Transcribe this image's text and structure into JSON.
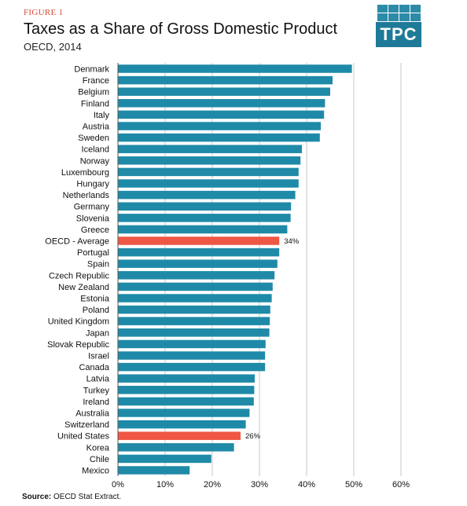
{
  "figure_label": "FIGURE 1",
  "logo_text": "TPC",
  "source_label": "Source:",
  "source_text": "OECD  Stat Extract.",
  "colors": {
    "bar": "#1f8aa8",
    "highlight": "#ef5744",
    "grid": "#c8c8c8",
    "figure_label": "#d94a38"
  },
  "chart_data": {
    "type": "bar",
    "orientation": "horizontal",
    "title": "Taxes as a Share of Gross Domestic Product",
    "subtitle": "OECD, 2014",
    "xlim": [
      0,
      60
    ],
    "xticks": [
      0,
      10,
      20,
      30,
      40,
      50,
      60
    ],
    "xtick_labels": [
      "0%",
      "10%",
      "20%",
      "30%",
      "40%",
      "50%",
      "60%"
    ],
    "grid": true,
    "categories": [
      "Denmark",
      "France",
      "Belgium",
      "Finland",
      "Italy",
      "Austria",
      "Sweden",
      "Iceland",
      "Norway",
      "Luxembourg",
      "Hungary",
      "Netherlands",
      "Germany",
      "Slovenia",
      "Greece",
      "OECD - Average",
      "Portugal",
      "Spain",
      "Czech Republic",
      "New Zealand",
      "Estonia",
      "Poland",
      "United Kingdom",
      "Japan",
      "Slovak Republic",
      "Israel",
      "Canada",
      "Latvia",
      "Turkey",
      "Ireland",
      "Australia",
      "Switzerland",
      "United States",
      "Korea",
      "Chile",
      "Mexico"
    ],
    "values": [
      49.6,
      45.5,
      45.0,
      43.9,
      43.7,
      43.0,
      42.8,
      39.0,
      38.7,
      38.3,
      38.3,
      37.6,
      36.7,
      36.6,
      35.9,
      34.2,
      34.2,
      33.8,
      33.2,
      32.8,
      32.6,
      32.3,
      32.2,
      32.1,
      31.3,
      31.2,
      31.2,
      29.0,
      28.9,
      28.8,
      27.9,
      27.1,
      26.0,
      24.6,
      19.8,
      15.2
    ],
    "highlight": [
      "OECD - Average",
      "United States"
    ],
    "data_labels": [
      {
        "category": "OECD - Average",
        "text": "34%"
      },
      {
        "category": "United States",
        "text": "26%"
      }
    ]
  }
}
